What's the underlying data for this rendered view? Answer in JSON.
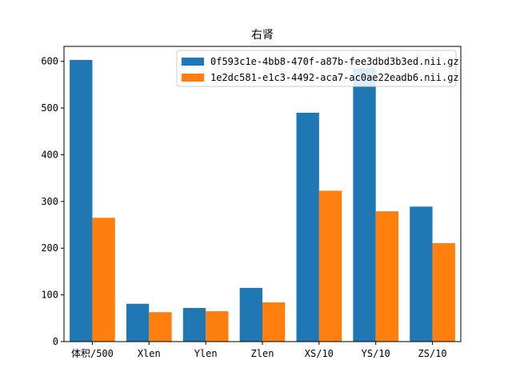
{
  "chart_data": {
    "type": "bar",
    "title": "右肾",
    "xlabel": "",
    "ylabel": "",
    "categories": [
      "体积/500",
      "Xlen",
      "Ylen",
      "Zlen",
      "XS/10",
      "YS/10",
      "ZS/10"
    ],
    "series": [
      {
        "name": "0f593c1e-4bb8-470f-a87b-fee3dbd3b3ed.nii.gz",
        "color": "#1f77b4",
        "values": [
          603,
          81,
          72,
          115,
          490,
          585,
          289
        ]
      },
      {
        "name": "1e2dc581-e1c3-4492-aca7-ac0ae22eadb6.nii.gz",
        "color": "#ff7f0e",
        "values": [
          265,
          63,
          65,
          84,
          323,
          279,
          211
        ]
      }
    ],
    "ylim": [
      0,
      632
    ],
    "yticks": [
      0,
      100,
      200,
      300,
      400,
      500,
      600
    ],
    "legend_position": "top-right",
    "grid": false
  }
}
